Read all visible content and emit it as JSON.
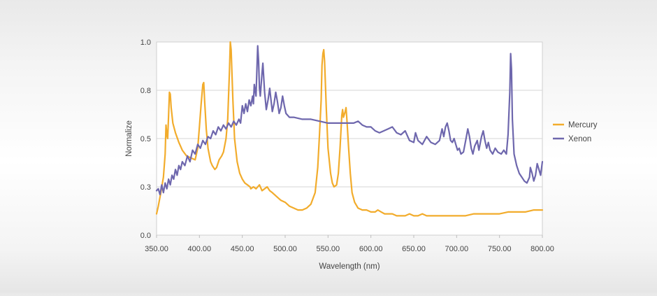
{
  "chart_data": {
    "type": "line",
    "xlabel": "Wavelength (nm)",
    "ylabel": "Normalize",
    "xlim": [
      350,
      800
    ],
    "ylim": [
      0,
      1.0
    ],
    "x_ticks": [
      350,
      400,
      450,
      500,
      550,
      600,
      650,
      700,
      750,
      800
    ],
    "x_tick_labels": [
      "350.00",
      "400.00",
      "450.00",
      "500.00",
      "550.00",
      "600.00",
      "650.00",
      "700.00",
      "750.00",
      "800.00"
    ],
    "y_ticks": [
      0,
      0.25,
      0.5,
      0.75,
      1.0
    ],
    "y_tick_labels": [
      "0.0",
      "0.3",
      "0.5",
      "0.8",
      "1.0"
    ],
    "grid": "horizontal",
    "legend_position": "right",
    "series": [
      {
        "name": "Mercury",
        "color": "#f2ac2c",
        "points": [
          [
            350,
            0.11
          ],
          [
            352,
            0.15
          ],
          [
            355,
            0.22
          ],
          [
            358,
            0.3
          ],
          [
            360,
            0.42
          ],
          [
            361,
            0.57
          ],
          [
            362,
            0.52
          ],
          [
            363,
            0.5
          ],
          [
            364,
            0.62
          ],
          [
            365,
            0.74
          ],
          [
            366,
            0.73
          ],
          [
            367,
            0.66
          ],
          [
            369,
            0.58
          ],
          [
            372,
            0.53
          ],
          [
            376,
            0.48
          ],
          [
            380,
            0.44
          ],
          [
            385,
            0.41
          ],
          [
            390,
            0.4
          ],
          [
            395,
            0.39
          ],
          [
            398,
            0.45
          ],
          [
            400,
            0.56
          ],
          [
            402,
            0.68
          ],
          [
            404,
            0.78
          ],
          [
            405,
            0.79
          ],
          [
            406,
            0.7
          ],
          [
            408,
            0.55
          ],
          [
            410,
            0.45
          ],
          [
            413,
            0.38
          ],
          [
            415,
            0.36
          ],
          [
            418,
            0.34
          ],
          [
            420,
            0.35
          ],
          [
            423,
            0.39
          ],
          [
            426,
            0.41
          ],
          [
            428,
            0.43
          ],
          [
            431,
            0.5
          ],
          [
            433,
            0.6
          ],
          [
            435,
            0.85
          ],
          [
            436,
            1.0
          ],
          [
            437,
            0.96
          ],
          [
            439,
            0.7
          ],
          [
            441,
            0.5
          ],
          [
            444,
            0.38
          ],
          [
            447,
            0.32
          ],
          [
            450,
            0.29
          ],
          [
            453,
            0.27
          ],
          [
            456,
            0.26
          ],
          [
            459,
            0.25
          ],
          [
            460,
            0.24
          ],
          [
            463,
            0.25
          ],
          [
            466,
            0.24
          ],
          [
            470,
            0.26
          ],
          [
            473,
            0.23
          ],
          [
            476,
            0.24
          ],
          [
            479,
            0.25
          ],
          [
            482,
            0.23
          ],
          [
            485,
            0.22
          ],
          [
            490,
            0.2
          ],
          [
            495,
            0.18
          ],
          [
            500,
            0.17
          ],
          [
            505,
            0.15
          ],
          [
            510,
            0.14
          ],
          [
            515,
            0.13
          ],
          [
            520,
            0.13
          ],
          [
            525,
            0.14
          ],
          [
            530,
            0.16
          ],
          [
            535,
            0.22
          ],
          [
            538,
            0.35
          ],
          [
            540,
            0.52
          ],
          [
            542,
            0.7
          ],
          [
            543,
            0.88
          ],
          [
            544,
            0.94
          ],
          [
            545,
            0.96
          ],
          [
            546,
            0.9
          ],
          [
            548,
            0.65
          ],
          [
            550,
            0.45
          ],
          [
            553,
            0.32
          ],
          [
            555,
            0.27
          ],
          [
            557,
            0.25
          ],
          [
            560,
            0.26
          ],
          [
            562,
            0.32
          ],
          [
            564,
            0.45
          ],
          [
            566,
            0.62
          ],
          [
            567,
            0.65
          ],
          [
            568,
            0.61
          ],
          [
            570,
            0.64
          ],
          [
            571,
            0.66
          ],
          [
            572,
            0.6
          ],
          [
            574,
            0.45
          ],
          [
            576,
            0.32
          ],
          [
            578,
            0.22
          ],
          [
            581,
            0.17
          ],
          [
            585,
            0.14
          ],
          [
            590,
            0.13
          ],
          [
            595,
            0.13
          ],
          [
            600,
            0.12
          ],
          [
            605,
            0.12
          ],
          [
            608,
            0.13
          ],
          [
            612,
            0.12
          ],
          [
            616,
            0.11
          ],
          [
            620,
            0.11
          ],
          [
            625,
            0.11
          ],
          [
            630,
            0.1
          ],
          [
            635,
            0.1
          ],
          [
            640,
            0.1
          ],
          [
            645,
            0.11
          ],
          [
            650,
            0.1
          ],
          [
            655,
            0.1
          ],
          [
            660,
            0.11
          ],
          [
            665,
            0.1
          ],
          [
            670,
            0.1
          ],
          [
            675,
            0.1
          ],
          [
            680,
            0.1
          ],
          [
            690,
            0.1
          ],
          [
            700,
            0.1
          ],
          [
            710,
            0.1
          ],
          [
            720,
            0.11
          ],
          [
            730,
            0.11
          ],
          [
            740,
            0.11
          ],
          [
            750,
            0.11
          ],
          [
            760,
            0.12
          ],
          [
            770,
            0.12
          ],
          [
            780,
            0.12
          ],
          [
            790,
            0.13
          ],
          [
            800,
            0.13
          ]
        ]
      },
      {
        "name": "Xenon",
        "color": "#6e67ad",
        "points": [
          [
            350,
            0.23
          ],
          [
            352,
            0.24
          ],
          [
            354,
            0.21
          ],
          [
            356,
            0.26
          ],
          [
            358,
            0.22
          ],
          [
            360,
            0.27
          ],
          [
            362,
            0.24
          ],
          [
            364,
            0.29
          ],
          [
            366,
            0.26
          ],
          [
            368,
            0.31
          ],
          [
            370,
            0.29
          ],
          [
            372,
            0.34
          ],
          [
            374,
            0.31
          ],
          [
            376,
            0.36
          ],
          [
            378,
            0.34
          ],
          [
            380,
            0.38
          ],
          [
            383,
            0.36
          ],
          [
            386,
            0.41
          ],
          [
            389,
            0.38
          ],
          [
            392,
            0.44
          ],
          [
            395,
            0.42
          ],
          [
            398,
            0.47
          ],
          [
            401,
            0.45
          ],
          [
            404,
            0.49
          ],
          [
            407,
            0.47
          ],
          [
            410,
            0.51
          ],
          [
            413,
            0.5
          ],
          [
            416,
            0.54
          ],
          [
            419,
            0.52
          ],
          [
            422,
            0.56
          ],
          [
            425,
            0.54
          ],
          [
            428,
            0.57
          ],
          [
            431,
            0.55
          ],
          [
            434,
            0.58
          ],
          [
            437,
            0.56
          ],
          [
            440,
            0.59
          ],
          [
            443,
            0.57
          ],
          [
            446,
            0.6
          ],
          [
            448,
            0.58
          ],
          [
            450,
            0.67
          ],
          [
            452,
            0.63
          ],
          [
            454,
            0.68
          ],
          [
            456,
            0.64
          ],
          [
            458,
            0.7
          ],
          [
            460,
            0.67
          ],
          [
            462,
            0.72
          ],
          [
            463,
            0.68
          ],
          [
            464,
            0.78
          ],
          [
            466,
            0.72
          ],
          [
            467,
            0.85
          ],
          [
            468,
            0.98
          ],
          [
            469,
            0.9
          ],
          [
            470,
            0.76
          ],
          [
            471,
            0.72
          ],
          [
            473,
            0.84
          ],
          [
            474,
            0.89
          ],
          [
            476,
            0.74
          ],
          [
            478,
            0.65
          ],
          [
            480,
            0.7
          ],
          [
            482,
            0.76
          ],
          [
            483,
            0.72
          ],
          [
            485,
            0.64
          ],
          [
            487,
            0.68
          ],
          [
            489,
            0.74
          ],
          [
            491,
            0.69
          ],
          [
            493,
            0.63
          ],
          [
            495,
            0.66
          ],
          [
            497,
            0.72
          ],
          [
            499,
            0.67
          ],
          [
            501,
            0.63
          ],
          [
            505,
            0.61
          ],
          [
            510,
            0.61
          ],
          [
            520,
            0.6
          ],
          [
            530,
            0.6
          ],
          [
            540,
            0.59
          ],
          [
            550,
            0.58
          ],
          [
            560,
            0.58
          ],
          [
            570,
            0.58
          ],
          [
            580,
            0.58
          ],
          [
            585,
            0.59
          ],
          [
            590,
            0.57
          ],
          [
            595,
            0.56
          ],
          [
            600,
            0.56
          ],
          [
            605,
            0.54
          ],
          [
            610,
            0.53
          ],
          [
            615,
            0.54
          ],
          [
            620,
            0.55
          ],
          [
            625,
            0.56
          ],
          [
            630,
            0.53
          ],
          [
            635,
            0.52
          ],
          [
            640,
            0.54
          ],
          [
            645,
            0.49
          ],
          [
            650,
            0.48
          ],
          [
            652,
            0.53
          ],
          [
            655,
            0.49
          ],
          [
            660,
            0.47
          ],
          [
            665,
            0.51
          ],
          [
            670,
            0.48
          ],
          [
            675,
            0.47
          ],
          [
            680,
            0.49
          ],
          [
            683,
            0.55
          ],
          [
            685,
            0.51
          ],
          [
            687,
            0.56
          ],
          [
            689,
            0.58
          ],
          [
            691,
            0.54
          ],
          [
            693,
            0.49
          ],
          [
            695,
            0.48
          ],
          [
            697,
            0.5
          ],
          [
            699,
            0.47
          ],
          [
            701,
            0.44
          ],
          [
            703,
            0.45
          ],
          [
            705,
            0.42
          ],
          [
            708,
            0.43
          ],
          [
            711,
            0.5
          ],
          [
            713,
            0.55
          ],
          [
            715,
            0.51
          ],
          [
            717,
            0.45
          ],
          [
            719,
            0.42
          ],
          [
            721,
            0.46
          ],
          [
            724,
            0.49
          ],
          [
            726,
            0.44
          ],
          [
            729,
            0.51
          ],
          [
            731,
            0.54
          ],
          [
            733,
            0.49
          ],
          [
            735,
            0.45
          ],
          [
            737,
            0.48
          ],
          [
            739,
            0.44
          ],
          [
            742,
            0.42
          ],
          [
            745,
            0.45
          ],
          [
            748,
            0.43
          ],
          [
            752,
            0.42
          ],
          [
            755,
            0.44
          ],
          [
            758,
            0.42
          ],
          [
            760,
            0.52
          ],
          [
            762,
            0.74
          ],
          [
            763,
            0.94
          ],
          [
            764,
            0.86
          ],
          [
            765,
            0.6
          ],
          [
            767,
            0.42
          ],
          [
            770,
            0.36
          ],
          [
            773,
            0.32
          ],
          [
            776,
            0.3
          ],
          [
            779,
            0.28
          ],
          [
            782,
            0.27
          ],
          [
            785,
            0.3
          ],
          [
            786,
            0.35
          ],
          [
            788,
            0.32
          ],
          [
            790,
            0.28
          ],
          [
            792,
            0.31
          ],
          [
            794,
            0.37
          ],
          [
            796,
            0.34
          ],
          [
            798,
            0.31
          ],
          [
            800,
            0.38
          ]
        ]
      }
    ]
  }
}
